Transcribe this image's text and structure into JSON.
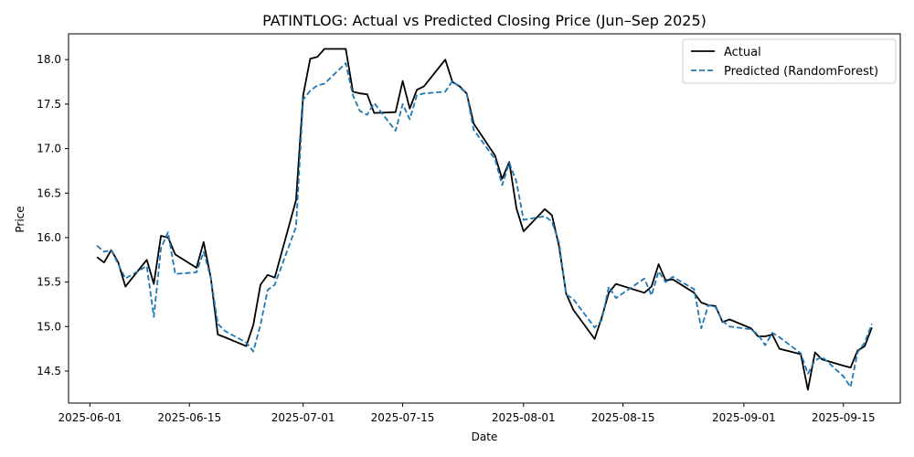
{
  "chart_data": {
    "type": "line",
    "title": "PATINTLOG: Actual vs Predicted Closing Price (Jun–Sep 2025)",
    "xlabel": "Date",
    "ylabel": "Price",
    "xlim": [
      "2025-05-29",
      "2025-09-23"
    ],
    "ylim": [
      14.14,
      18.29
    ],
    "x_ticks": [
      "2025-06-01",
      "2025-06-15",
      "2025-07-01",
      "2025-07-15",
      "2025-08-01",
      "2025-08-15",
      "2025-09-01",
      "2025-09-15"
    ],
    "y_ticks": [
      14.5,
      15.0,
      15.5,
      16.0,
      16.5,
      17.0,
      17.5,
      18.0
    ],
    "y_tick_labels": [
      "14.5",
      "15.0",
      "15.5",
      "16.0",
      "16.5",
      "17.0",
      "17.5",
      "18.0"
    ],
    "grid": false,
    "legend_position": "top-right",
    "series": [
      {
        "name": "Actual",
        "color": "#000000",
        "style": "solid",
        "points": [
          [
            "2025-06-02",
            15.78
          ],
          [
            "2025-06-03",
            15.72
          ],
          [
            "2025-06-04",
            15.86
          ],
          [
            "2025-06-05",
            15.72
          ],
          [
            "2025-06-06",
            15.45
          ],
          [
            "2025-06-09",
            15.75
          ],
          [
            "2025-06-10",
            15.48
          ],
          [
            "2025-06-11",
            16.02
          ],
          [
            "2025-06-12",
            16.0
          ],
          [
            "2025-06-13",
            15.81
          ],
          [
            "2025-06-16",
            15.66
          ],
          [
            "2025-06-17",
            15.95
          ],
          [
            "2025-06-18",
            15.55
          ],
          [
            "2025-06-19",
            14.91
          ],
          [
            "2025-06-20",
            14.88
          ],
          [
            "2025-06-23",
            14.78
          ],
          [
            "2025-06-24",
            15.02
          ],
          [
            "2025-06-25",
            15.47
          ],
          [
            "2025-06-26",
            15.58
          ],
          [
            "2025-06-27",
            15.55
          ],
          [
            "2025-06-30",
            16.42
          ],
          [
            "2025-07-01",
            17.6
          ],
          [
            "2025-07-02",
            18.01
          ],
          [
            "2025-07-03",
            18.03
          ],
          [
            "2025-07-04",
            18.12
          ],
          [
            "2025-07-07",
            18.12
          ],
          [
            "2025-07-08",
            17.64
          ],
          [
            "2025-07-09",
            17.62
          ],
          [
            "2025-07-10",
            17.61
          ],
          [
            "2025-07-11",
            17.4
          ],
          [
            "2025-07-14",
            17.41
          ],
          [
            "2025-07-15",
            17.76
          ],
          [
            "2025-07-16",
            17.45
          ],
          [
            "2025-07-17",
            17.66
          ],
          [
            "2025-07-18",
            17.7
          ],
          [
            "2025-07-21",
            18.0
          ],
          [
            "2025-07-22",
            17.75
          ],
          [
            "2025-07-23",
            17.7
          ],
          [
            "2025-07-24",
            17.62
          ],
          [
            "2025-07-25",
            17.28
          ],
          [
            "2025-07-28",
            16.92
          ],
          [
            "2025-07-29",
            16.66
          ],
          [
            "2025-07-30",
            16.85
          ],
          [
            "2025-07-31",
            16.33
          ],
          [
            "2025-08-01",
            16.07
          ],
          [
            "2025-08-04",
            16.32
          ],
          [
            "2025-08-05",
            16.25
          ],
          [
            "2025-08-06",
            15.9
          ],
          [
            "2025-08-07",
            15.37
          ],
          [
            "2025-08-08",
            15.19
          ],
          [
            "2025-08-11",
            14.86
          ],
          [
            "2025-08-12",
            15.1
          ],
          [
            "2025-08-13",
            15.38
          ],
          [
            "2025-08-14",
            15.48
          ],
          [
            "2025-08-18",
            15.38
          ],
          [
            "2025-08-19",
            15.45
          ],
          [
            "2025-08-20",
            15.7
          ],
          [
            "2025-08-21",
            15.52
          ],
          [
            "2025-08-22",
            15.53
          ],
          [
            "2025-08-25",
            15.38
          ],
          [
            "2025-08-26",
            15.27
          ],
          [
            "2025-08-27",
            15.24
          ],
          [
            "2025-08-28",
            15.23
          ],
          [
            "2025-08-29",
            15.05
          ],
          [
            "2025-08-30",
            15.08
          ],
          [
            "2025-09-02",
            14.98
          ],
          [
            "2025-09-03",
            14.89
          ],
          [
            "2025-09-04",
            14.89
          ],
          [
            "2025-09-05",
            14.91
          ],
          [
            "2025-09-06",
            14.75
          ],
          [
            "2025-09-09",
            14.69
          ],
          [
            "2025-09-10",
            14.29
          ],
          [
            "2025-09-11",
            14.71
          ],
          [
            "2025-09-12",
            14.63
          ],
          [
            "2025-09-15",
            14.56
          ],
          [
            "2025-09-16",
            14.54
          ],
          [
            "2025-09-17",
            14.73
          ],
          [
            "2025-09-18",
            14.78
          ],
          [
            "2025-09-19",
            14.99
          ]
        ]
      },
      {
        "name": "Predicted (RandomForest)",
        "color": "#1f77b4",
        "style": "dashed",
        "points": [
          [
            "2025-06-02",
            15.91
          ],
          [
            "2025-06-03",
            15.84
          ],
          [
            "2025-06-04",
            15.86
          ],
          [
            "2025-06-05",
            15.7
          ],
          [
            "2025-06-06",
            15.54
          ],
          [
            "2025-06-09",
            15.68
          ],
          [
            "2025-06-10",
            15.11
          ],
          [
            "2025-06-11",
            15.88
          ],
          [
            "2025-06-12",
            16.06
          ],
          [
            "2025-06-13",
            15.59
          ],
          [
            "2025-06-16",
            15.61
          ],
          [
            "2025-06-17",
            15.84
          ],
          [
            "2025-06-18",
            15.55
          ],
          [
            "2025-06-19",
            15.03
          ],
          [
            "2025-06-20",
            14.95
          ],
          [
            "2025-06-23",
            14.82
          ],
          [
            "2025-06-24",
            14.72
          ],
          [
            "2025-06-25",
            15.02
          ],
          [
            "2025-06-26",
            15.41
          ],
          [
            "2025-06-27",
            15.47
          ],
          [
            "2025-06-30",
            16.12
          ],
          [
            "2025-07-01",
            17.55
          ],
          [
            "2025-07-02",
            17.65
          ],
          [
            "2025-07-03",
            17.71
          ],
          [
            "2025-07-04",
            17.73
          ],
          [
            "2025-07-07",
            17.96
          ],
          [
            "2025-07-08",
            17.6
          ],
          [
            "2025-07-09",
            17.42
          ],
          [
            "2025-07-10",
            17.38
          ],
          [
            "2025-07-11",
            17.51
          ],
          [
            "2025-07-14",
            17.2
          ],
          [
            "2025-07-15",
            17.5
          ],
          [
            "2025-07-16",
            17.33
          ],
          [
            "2025-07-17",
            17.6
          ],
          [
            "2025-07-18",
            17.62
          ],
          [
            "2025-07-21",
            17.64
          ],
          [
            "2025-07-22",
            17.76
          ],
          [
            "2025-07-23",
            17.69
          ],
          [
            "2025-07-24",
            17.62
          ],
          [
            "2025-07-25",
            17.21
          ],
          [
            "2025-07-28",
            16.88
          ],
          [
            "2025-07-29",
            16.59
          ],
          [
            "2025-07-30",
            16.84
          ],
          [
            "2025-07-31",
            16.63
          ],
          [
            "2025-08-01",
            16.2
          ],
          [
            "2025-08-04",
            16.24
          ],
          [
            "2025-08-05",
            16.18
          ],
          [
            "2025-08-06",
            15.94
          ],
          [
            "2025-08-07",
            15.36
          ],
          [
            "2025-08-08",
            15.31
          ],
          [
            "2025-08-11",
            14.99
          ],
          [
            "2025-08-12",
            15.07
          ],
          [
            "2025-08-13",
            15.45
          ],
          [
            "2025-08-14",
            15.32
          ],
          [
            "2025-08-18",
            15.54
          ],
          [
            "2025-08-19",
            15.35
          ],
          [
            "2025-08-20",
            15.62
          ],
          [
            "2025-08-21",
            15.5
          ],
          [
            "2025-08-22",
            15.56
          ],
          [
            "2025-08-25",
            15.42
          ],
          [
            "2025-08-26",
            14.98
          ],
          [
            "2025-08-27",
            15.24
          ],
          [
            "2025-08-28",
            15.22
          ],
          [
            "2025-08-29",
            15.06
          ],
          [
            "2025-08-30",
            15.0
          ],
          [
            "2025-09-02",
            14.97
          ],
          [
            "2025-09-03",
            14.91
          ],
          [
            "2025-09-04",
            14.79
          ],
          [
            "2025-09-05",
            14.93
          ],
          [
            "2025-09-06",
            14.88
          ],
          [
            "2025-09-09",
            14.7
          ],
          [
            "2025-09-10",
            14.47
          ],
          [
            "2025-09-11",
            14.62
          ],
          [
            "2025-09-12",
            14.66
          ],
          [
            "2025-09-15",
            14.44
          ],
          [
            "2025-09-16",
            14.32
          ],
          [
            "2025-09-17",
            14.71
          ],
          [
            "2025-09-18",
            14.82
          ],
          [
            "2025-09-19",
            15.03
          ]
        ]
      }
    ]
  }
}
